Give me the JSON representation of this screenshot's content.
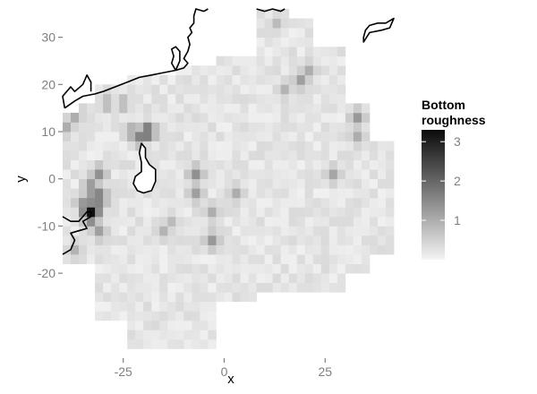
{
  "chart_data": {
    "type": "heatmap",
    "xlabel": "x",
    "ylabel": "y",
    "xlim": [
      -40,
      42
    ],
    "ylim": [
      -38,
      36
    ],
    "x_ticks": [
      -25,
      0,
      25
    ],
    "y_ticks": [
      -20,
      -10,
      0,
      10,
      20,
      30
    ],
    "cell_size": 2,
    "value_range": [
      0,
      3.3
    ],
    "grid": false,
    "colors": {
      "low": "#f4f4f4",
      "high": "#0a0a0a",
      "coastline": "#000000",
      "tick_label": "#7f7f7f"
    },
    "legend": {
      "title_lines": [
        "Bottom",
        "roughness"
      ],
      "ticks": [
        1,
        2,
        3
      ],
      "position": "right"
    },
    "hotspots": [
      {
        "x": -33,
        "y": -7,
        "value": 3.2
      },
      {
        "x": -31,
        "y": -4,
        "value": 1.9
      },
      {
        "x": -33,
        "y": -2,
        "value": 1.5
      },
      {
        "x": -31,
        "y": 1,
        "value": 1.4
      },
      {
        "x": -35,
        "y": -5,
        "value": 1.3
      },
      {
        "x": -31,
        "y": -11,
        "value": 1.2
      },
      {
        "x": -19,
        "y": 10,
        "value": 2.0
      },
      {
        "x": -21,
        "y": 9,
        "value": 1.6
      },
      {
        "x": -23,
        "y": 10,
        "value": 1.1
      },
      {
        "x": -37,
        "y": 14,
        "value": 1.2
      },
      {
        "x": -39,
        "y": 11,
        "value": 1.0
      },
      {
        "x": -29,
        "y": 16,
        "value": 0.9
      },
      {
        "x": -25,
        "y": 16,
        "value": 0.9
      },
      {
        "x": -7,
        "y": 1,
        "value": 1.4
      },
      {
        "x": -7,
        "y": -3,
        "value": 1.2
      },
      {
        "x": -3,
        "y": -13,
        "value": 1.3
      },
      {
        "x": -3,
        "y": -7,
        "value": 1.0
      },
      {
        "x": 3,
        "y": -3,
        "value": 1.0
      },
      {
        "x": 19,
        "y": 21,
        "value": 1.2
      },
      {
        "x": 21,
        "y": 23,
        "value": 1.0
      },
      {
        "x": 15,
        "y": 19,
        "value": 0.9
      },
      {
        "x": 13,
        "y": 33,
        "value": 0.8
      },
      {
        "x": 33,
        "y": 13,
        "value": 1.3
      },
      {
        "x": 33,
        "y": 9,
        "value": 1.0
      },
      {
        "x": 27,
        "y": 1,
        "value": 1.1
      },
      {
        "x": -37,
        "y": -15,
        "value": 0.9
      },
      {
        "x": -15,
        "y": -11,
        "value": 0.9
      },
      {
        "x": -13,
        "y": -9,
        "value": 0.8
      }
    ],
    "coastline": {
      "mainland": [
        [
          -39.5,
          15
        ],
        [
          -37,
          16.5
        ],
        [
          -35,
          17.5
        ],
        [
          -32,
          18
        ],
        [
          -30,
          18.5
        ],
        [
          -27,
          19.5
        ],
        [
          -24,
          20.5
        ],
        [
          -21,
          21.5
        ],
        [
          -18,
          22
        ],
        [
          -15,
          22.5
        ],
        [
          -12,
          23
        ],
        [
          -10,
          23.5
        ],
        [
          -9,
          24.5
        ],
        [
          -10,
          25.5
        ],
        [
          -9,
          27
        ],
        [
          -8.5,
          28.5
        ],
        [
          -9,
          30
        ],
        [
          -8,
          31
        ],
        [
          -8.5,
          32
        ],
        [
          -7.5,
          33
        ],
        [
          -7.5,
          34.5
        ],
        [
          -7,
          36
        ],
        [
          -5,
          35.5
        ],
        [
          -4,
          36
        ]
      ],
      "mainland_east": [
        [
          8,
          36
        ],
        [
          10,
          35.5
        ],
        [
          12,
          36
        ],
        [
          14,
          35.5
        ],
        [
          15,
          36
        ]
      ],
      "northwest_headland": [
        [
          -39.5,
          15
        ],
        [
          -40,
          17.5
        ],
        [
          -38,
          19.5
        ],
        [
          -37,
          18.5
        ],
        [
          -35,
          20
        ],
        [
          -34,
          22
        ],
        [
          -33,
          20.5
        ],
        [
          -33,
          18.5
        ]
      ],
      "estuary_inlet": [
        [
          -12,
          23
        ],
        [
          -13,
          24.5
        ],
        [
          -12.5,
          26
        ],
        [
          -13,
          27.5
        ],
        [
          -12,
          28
        ],
        [
          -11,
          27
        ],
        [
          -11,
          25
        ],
        [
          -12,
          23
        ]
      ],
      "southwest_landmass": [
        [
          -40,
          -16
        ],
        [
          -38,
          -15
        ],
        [
          -37,
          -13
        ],
        [
          -38,
          -11.5
        ],
        [
          -36,
          -11
        ],
        [
          -34,
          -10.5
        ],
        [
          -35,
          -9
        ],
        [
          -33,
          -8
        ],
        [
          -33,
          -7
        ],
        [
          -34,
          -7
        ],
        [
          -36,
          -9
        ],
        [
          -38,
          -9
        ],
        [
          -40,
          -8
        ]
      ],
      "northeast_island": [
        [
          34.5,
          29
        ],
        [
          36,
          31
        ],
        [
          39,
          31.5
        ],
        [
          41,
          32
        ],
        [
          42,
          34
        ],
        [
          40,
          33
        ],
        [
          38,
          33
        ],
        [
          36,
          32.5
        ],
        [
          35,
          31.5
        ],
        [
          34.5,
          30
        ]
      ],
      "central_island": [
        [
          -20.5,
          7.5
        ],
        [
          -19.5,
          6.5
        ],
        [
          -19.5,
          4.5
        ],
        [
          -18.5,
          3
        ],
        [
          -17,
          2
        ],
        [
          -17,
          -0.5
        ],
        [
          -18,
          -2.5
        ],
        [
          -20,
          -3
        ],
        [
          -21.5,
          -2.5
        ],
        [
          -22.5,
          -1
        ],
        [
          -22,
          0.5
        ],
        [
          -20.5,
          1.5
        ],
        [
          -20.5,
          3.5
        ],
        [
          -21,
          5.5
        ],
        [
          -20.5,
          7.5
        ]
      ]
    }
  }
}
